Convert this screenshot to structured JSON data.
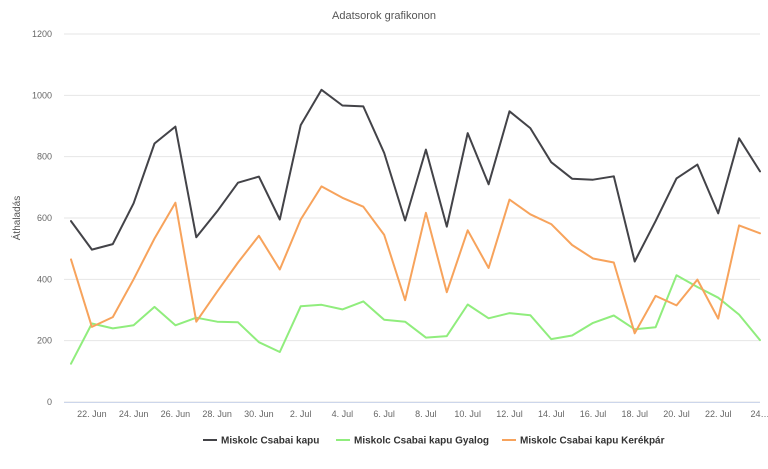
{
  "chart_data": {
    "type": "line",
    "title": "Adatsorok grafikonon",
    "ylabel": "Áthaladás",
    "ylim": [
      0,
      1200
    ],
    "yticks": [
      0,
      200,
      400,
      600,
      800,
      1000,
      1200
    ],
    "grid": true,
    "legend_position": "bottom",
    "x": [
      "Jun 21",
      "Jun 22",
      "Jun 23",
      "Jun 24",
      "Jun 25",
      "Jun 26",
      "Jun 27",
      "Jun 28",
      "Jun 29",
      "Jun 30",
      "Jul 1",
      "Jul 2",
      "Jul 3",
      "Jul 4",
      "Jul 5",
      "Jul 6",
      "Jul 7",
      "Jul 8",
      "Jul 9",
      "Jul 10",
      "Jul 11",
      "Jul 12",
      "Jul 13",
      "Jul 14",
      "Jul 15",
      "Jul 16",
      "Jul 17",
      "Jul 18",
      "Jul 19",
      "Jul 20",
      "Jul 21",
      "Jul 22",
      "Jul 23",
      "Jul 24"
    ],
    "x_tick_labels": [
      {
        "index": 1,
        "label": "22. Jun"
      },
      {
        "index": 3,
        "label": "24. Jun"
      },
      {
        "index": 5,
        "label": "26. Jun"
      },
      {
        "index": 7,
        "label": "28. Jun"
      },
      {
        "index": 9,
        "label": "30. Jun"
      },
      {
        "index": 11,
        "label": "2. Jul"
      },
      {
        "index": 13,
        "label": "4. Jul"
      },
      {
        "index": 15,
        "label": "6. Jul"
      },
      {
        "index": 17,
        "label": "8. Jul"
      },
      {
        "index": 19,
        "label": "10. Jul"
      },
      {
        "index": 21,
        "label": "12. Jul"
      },
      {
        "index": 23,
        "label": "14. Jul"
      },
      {
        "index": 25,
        "label": "16. Jul"
      },
      {
        "index": 27,
        "label": "18. Jul"
      },
      {
        "index": 29,
        "label": "20. Jul"
      },
      {
        "index": 31,
        "label": "22. Jul"
      },
      {
        "index": 33,
        "label": "24…"
      }
    ],
    "series": [
      {
        "name": "Miskolc Csabai kapu",
        "color": "#434348",
        "values": [
          590,
          497,
          515,
          648,
          843,
          898,
          537,
          622,
          715,
          735,
          595,
          903,
          1018,
          967,
          964,
          812,
          592,
          823,
          572,
          877,
          710,
          948,
          893,
          782,
          728,
          725,
          736,
          458,
          590,
          729,
          774,
          615,
          860,
          752
        ]
      },
      {
        "name": "Miskolc Csabai kapu Gyalog",
        "color": "#90ed7d",
        "values": [
          125,
          256,
          240,
          250,
          310,
          250,
          275,
          262,
          260,
          195,
          163,
          312,
          317,
          302,
          328,
          268,
          262,
          210,
          215,
          318,
          273,
          290,
          283,
          205,
          217,
          258,
          282,
          237,
          244,
          413,
          375,
          340,
          285,
          202
        ]
      },
      {
        "name": "Miskolc Csabai kapu Kerékpár",
        "color": "#f7a35c",
        "values": [
          465,
          245,
          277,
          400,
          533,
          650,
          262,
          360,
          455,
          542,
          432,
          595,
          703,
          666,
          637,
          545,
          332,
          617,
          358,
          560,
          437,
          660,
          612,
          580,
          512,
          468,
          455,
          224,
          346,
          315,
          399,
          272,
          576,
          550
        ]
      }
    ]
  }
}
